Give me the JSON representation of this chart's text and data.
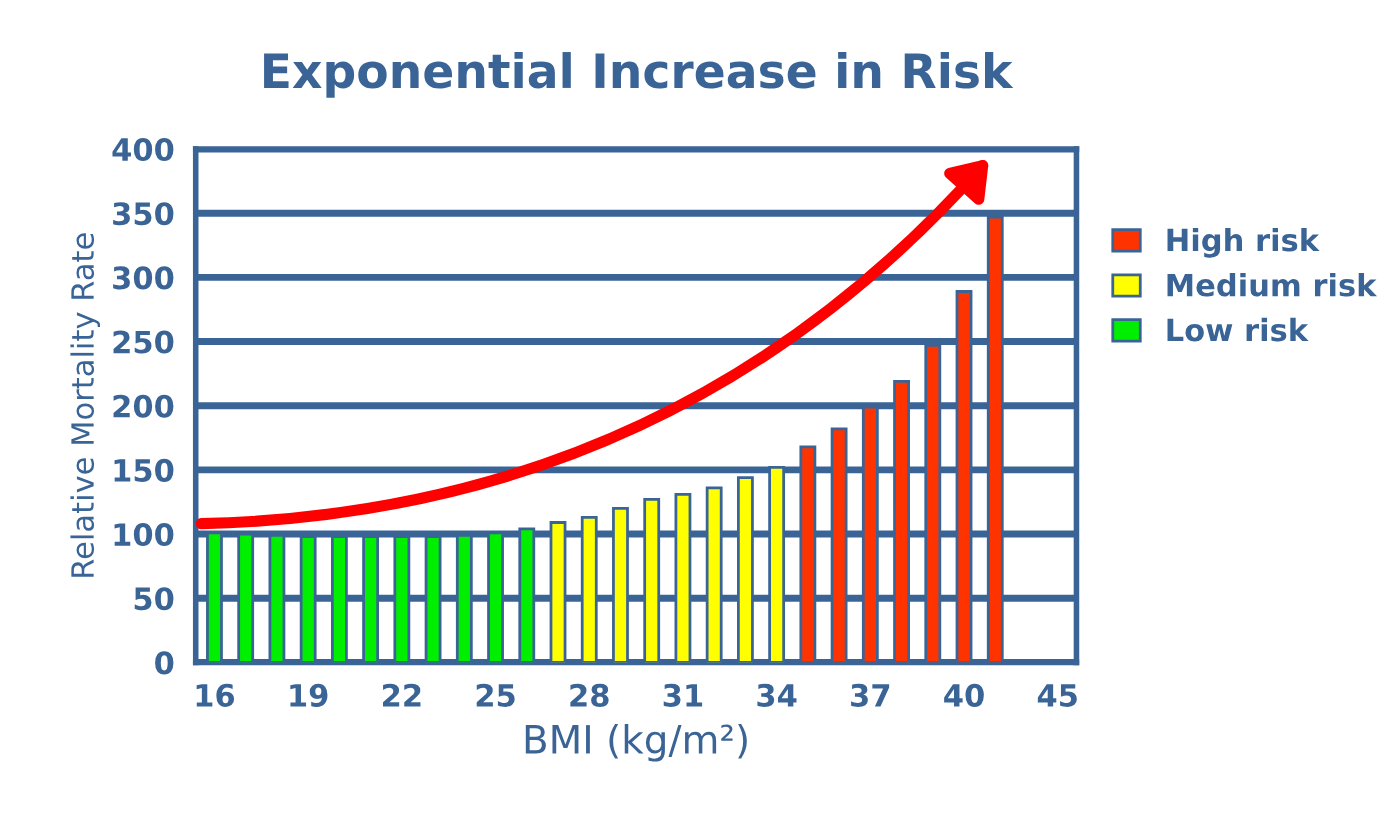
{
  "chart_data": {
    "type": "bar",
    "title": "Exponential Increase in Risk",
    "xlabel": "BMI (kg/m²)",
    "ylabel": "Relative Mortality Rate",
    "categories": [
      "16",
      null,
      null,
      "19",
      null,
      null,
      "22",
      null,
      null,
      "25",
      null,
      null,
      "28",
      null,
      null,
      "31",
      null,
      null,
      "34",
      null,
      null,
      "37",
      null,
      null,
      "40",
      null,
      null,
      "45"
    ],
    "series": [
      {
        "name": "High risk",
        "color": "#ff3300",
        "values": [
          null,
          null,
          null,
          null,
          null,
          null,
          null,
          null,
          null,
          null,
          null,
          null,
          null,
          null,
          null,
          null,
          null,
          null,
          null,
          168,
          182,
          199,
          219,
          247,
          289,
          347,
          null,
          null
        ]
      },
      {
        "name": "Medium risk",
        "color": "#ffff00",
        "values": [
          null,
          null,
          null,
          null,
          null,
          null,
          null,
          null,
          null,
          null,
          null,
          109,
          113,
          120,
          127,
          131,
          136,
          144,
          152,
          null,
          null,
          null,
          null,
          null,
          null,
          null,
          null,
          null
        ]
      },
      {
        "name": "Low risk",
        "color": "#00ee00",
        "values": [
          101,
          100,
          99,
          98,
          98,
          98,
          98,
          98,
          99,
          101,
          104,
          null,
          null,
          null,
          null,
          null,
          null,
          null,
          null,
          null,
          null,
          null,
          null,
          null,
          null,
          null,
          null,
          null
        ]
      }
    ],
    "ylim": [
      0,
      400
    ],
    "yticks": [
      0,
      50,
      100,
      150,
      200,
      250,
      300,
      350,
      400
    ],
    "grid": "y",
    "legend": "right"
  }
}
